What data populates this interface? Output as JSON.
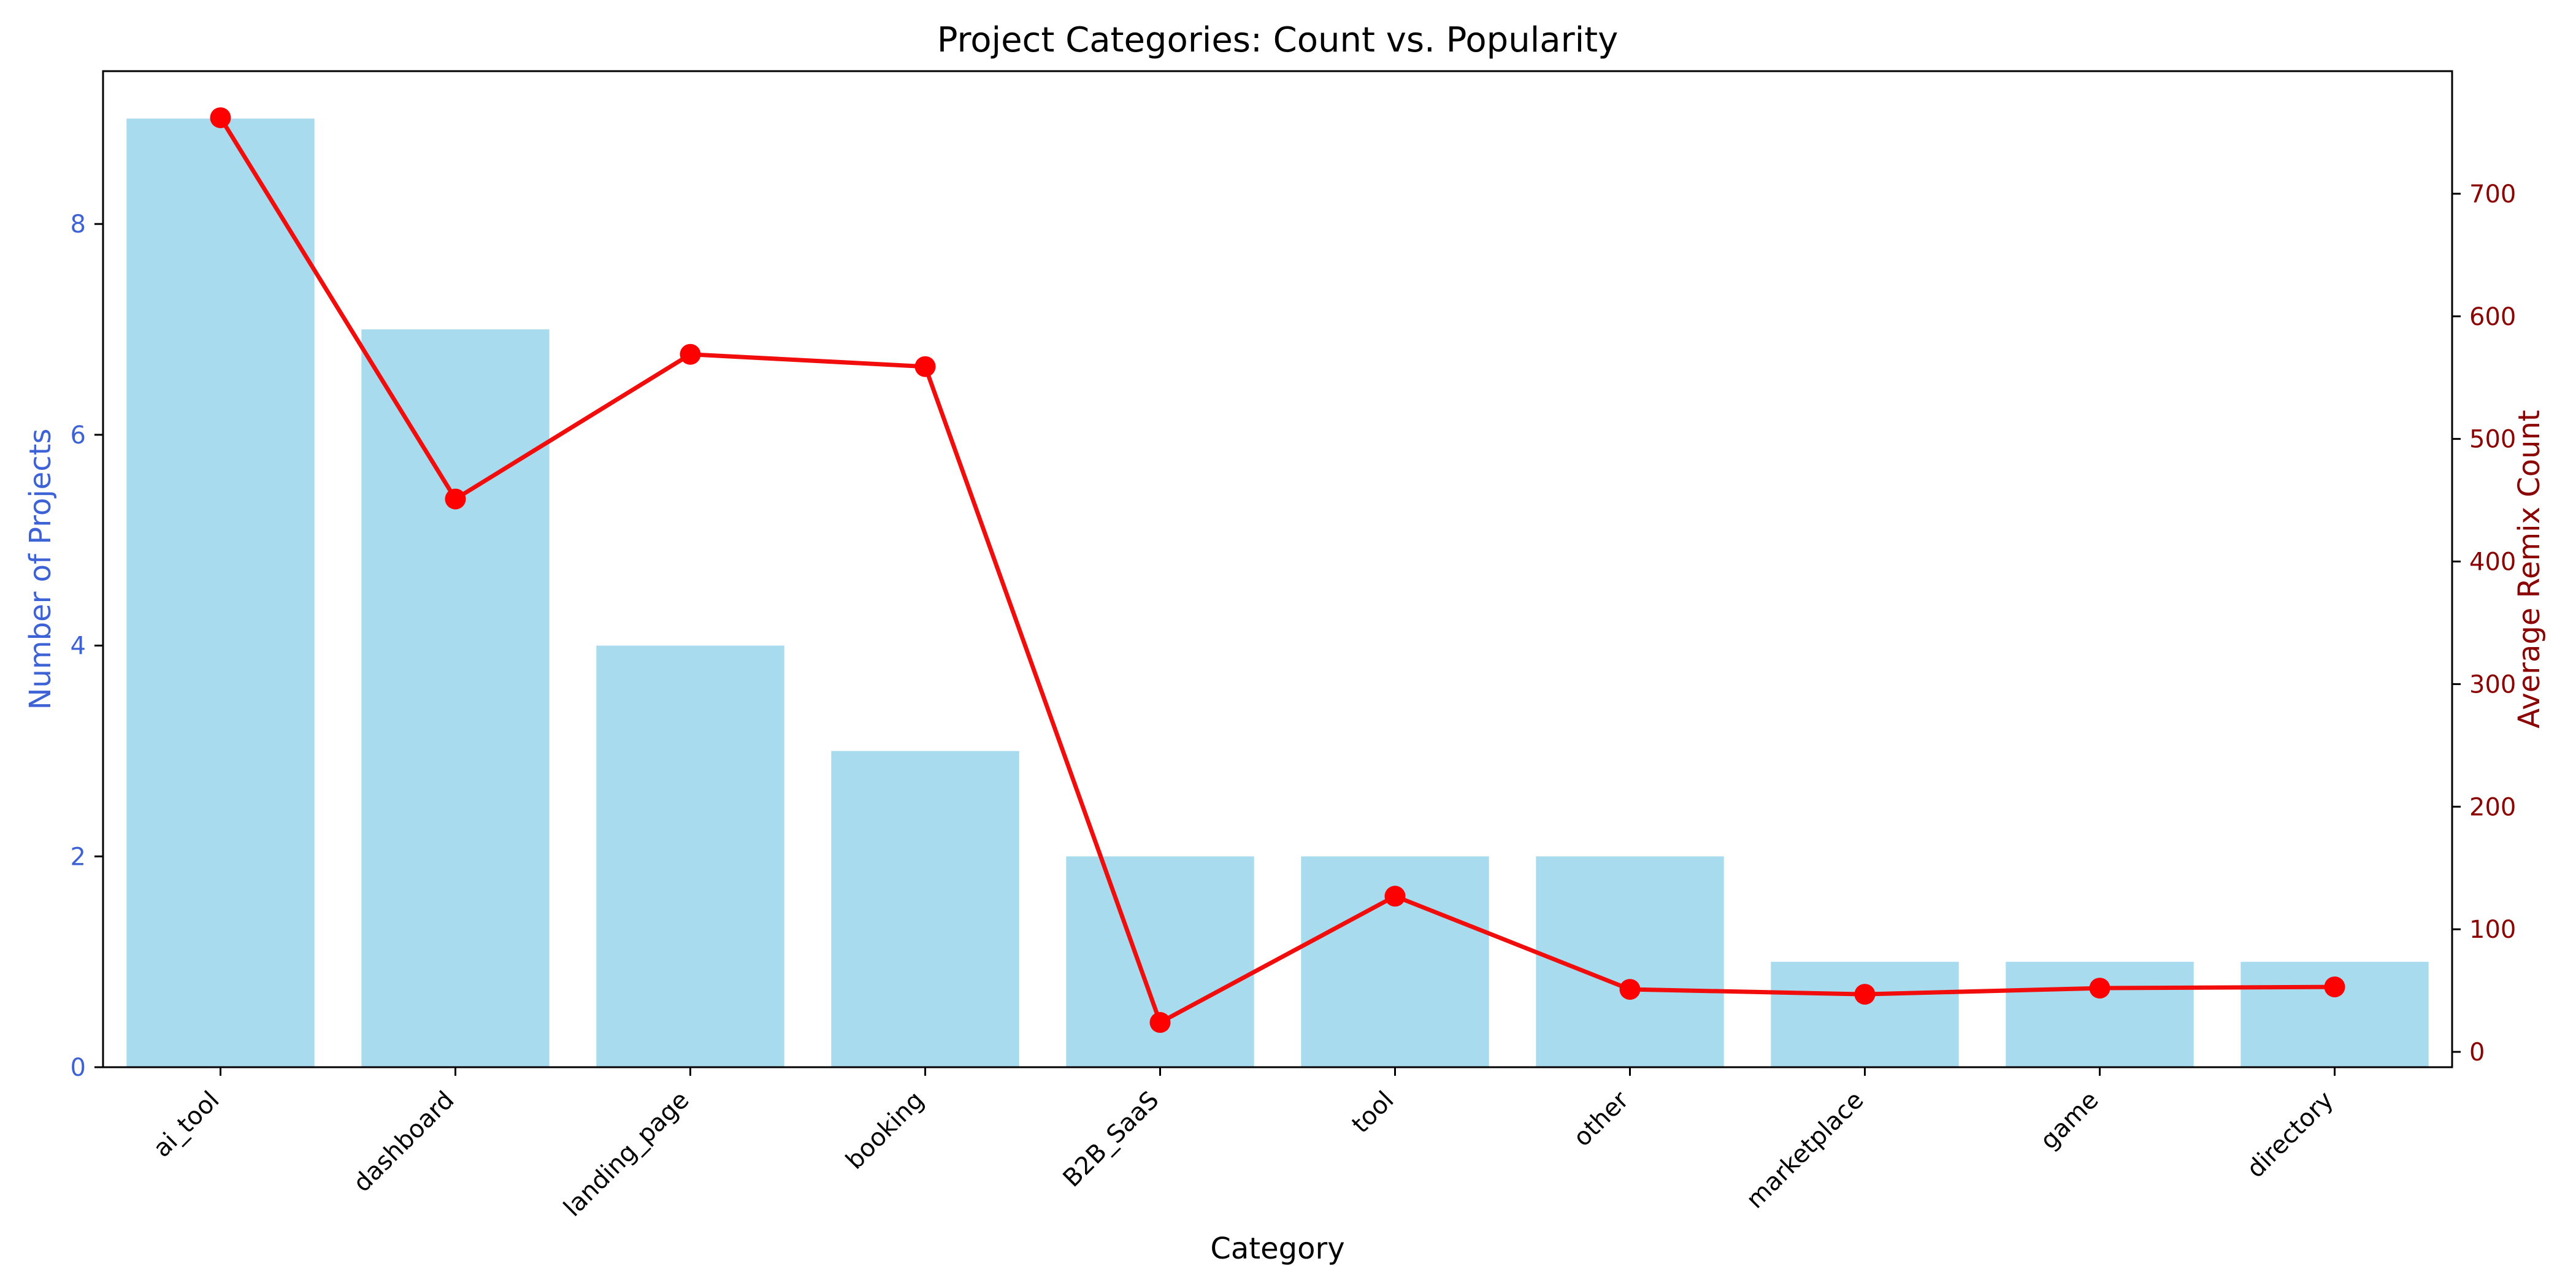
{
  "chart_data": {
    "type": "bar",
    "title": "Project Categories: Count vs. Popularity",
    "xlabel": "Category",
    "ylabel_left": "Number of Projects",
    "ylabel_right": "Average Remix Count",
    "categories": [
      "ai_tool",
      "dashboard",
      "landing_page",
      "booking",
      "B2B_SaaS",
      "tool",
      "other",
      "marketplace",
      "game",
      "directory"
    ],
    "series": [
      {
        "type": "bar",
        "axis": "left",
        "values": [
          9,
          7,
          4,
          3,
          2,
          2,
          2,
          1,
          1,
          1
        ]
      },
      {
        "type": "line",
        "axis": "right",
        "values": [
          762,
          451,
          569,
          559,
          24,
          127,
          51,
          47,
          52,
          53
        ]
      }
    ],
    "ylim_left": [
      0,
      9.45
    ],
    "ylim_right": [
      -12.5,
      800
    ],
    "yticks_left": [
      0,
      2,
      4,
      6,
      8
    ],
    "yticks_right": [
      0,
      100,
      200,
      300,
      400,
      500,
      600,
      700
    ],
    "grid": false,
    "colors": {
      "bar": "#a8dbee",
      "line": "#f20d0d",
      "marker": "#ff0000",
      "left_axis": "#3d62d6",
      "right_axis": "#8b0000",
      "text": "#000000"
    }
  }
}
